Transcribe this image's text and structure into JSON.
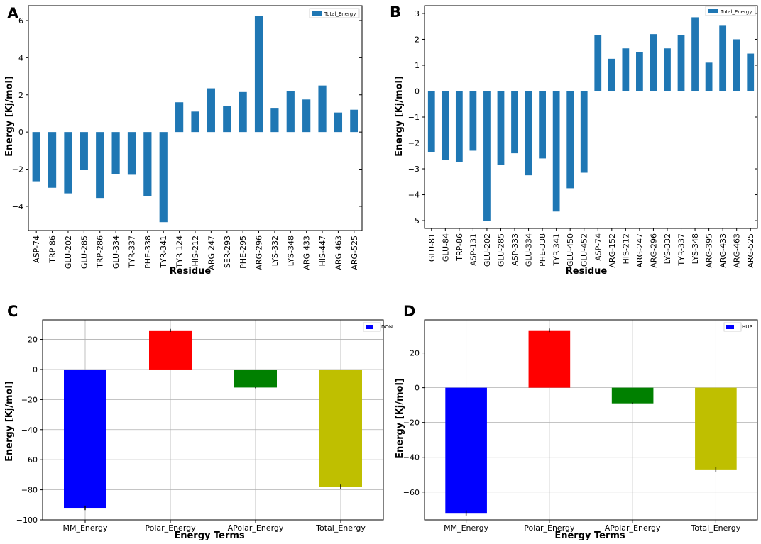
{
  "chart_data": [
    {
      "panel": "A",
      "type": "bar",
      "xlabel": "Residue",
      "ylabel": "Energy [Kj/mol]",
      "ylim": [
        -5.3,
        6.8
      ],
      "yticks": [
        -4,
        -2,
        0,
        2,
        4,
        6
      ],
      "grid": false,
      "legend": "top-right",
      "color": "#1f77b4",
      "series": [
        {
          "name": "Total_Energy",
          "values": [
            -2.65,
            -3.0,
            -3.3,
            -2.05,
            -3.55,
            -2.25,
            -2.3,
            -3.45,
            -4.85,
            1.6,
            1.1,
            2.35,
            1.4,
            2.15,
            6.25,
            1.3,
            2.2,
            1.75,
            2.5,
            1.05,
            1.2
          ]
        }
      ],
      "categories": [
        "ASP-74",
        "TRP-86",
        "GLU-202",
        "GLU-285",
        "TRP-286",
        "GLU-334",
        "TYR-337",
        "PHE-338",
        "TYR-341",
        "TYR-124",
        "HIS-212",
        "ARG-247",
        "SER-293",
        "PHE-295",
        "ARG-296",
        "LYS-332",
        "LYS-348",
        "ARG-433",
        "HIS-447",
        "ARG-463",
        "ARG-525"
      ]
    },
    {
      "panel": "B",
      "type": "bar",
      "xlabel": "Residue",
      "ylabel": "Energy [Kj/mol]",
      "ylim": [
        -5.3,
        3.3
      ],
      "yticks": [
        -5,
        -4,
        -3,
        -2,
        -1,
        0,
        1,
        2,
        3
      ],
      "grid": false,
      "legend": "top-right",
      "color": "#1f77b4",
      "series": [
        {
          "name": "Total_Energy",
          "values": [
            -2.35,
            -2.65,
            -2.75,
            -2.3,
            -5.0,
            -2.85,
            -2.4,
            -3.25,
            -2.6,
            -4.65,
            -3.75,
            -3.15,
            2.15,
            1.25,
            1.65,
            1.5,
            2.2,
            1.65,
            2.15,
            2.85,
            1.1,
            2.55,
            2.0,
            1.45
          ]
        }
      ],
      "categories": [
        "GLU-81",
        "GLU-84",
        "TRP-86",
        "ASP-131",
        "GLU-202",
        "GLU-285",
        "ASP-333",
        "GLU-334",
        "PHE-338",
        "TYR-341",
        "GLU-450",
        "GLU-452",
        "ASP-74",
        "ARG-152",
        "HIS-212",
        "ARG-247",
        "ARG-296",
        "LYS-332",
        "TYR-337",
        "LYS-348",
        "ARG-395",
        "ARG-433",
        "ARG-463",
        "ARG-525"
      ]
    },
    {
      "panel": "C",
      "type": "bar",
      "xlabel": "Energy Terms",
      "ylabel": "Energy [Kj/mol]",
      "ylim": [
        -100,
        33
      ],
      "yticks": [
        -100,
        -80,
        -60,
        -40,
        -20,
        0,
        20
      ],
      "grid": true,
      "legend": "top-right",
      "series": [
        {
          "name": "DON",
          "values": [
            -92,
            26,
            -12,
            -78
          ]
        }
      ],
      "errors": [
        1.5,
        1.0,
        0.5,
        1.5
      ],
      "colors": [
        "#0000ff",
        "#ff0000",
        "#008000",
        "#bfbf00"
      ],
      "legend_color": "#0000ff",
      "categories": [
        "MM_Energy",
        "Polar_Energy",
        "APolar_Energy",
        "Total_Energy"
      ]
    },
    {
      "panel": "D",
      "type": "bar",
      "xlabel": "Energy Terms",
      "ylabel": "Energy [Kj/mol]",
      "ylim": [
        -76,
        39
      ],
      "yticks": [
        -60,
        -40,
        -20,
        0,
        20
      ],
      "grid": true,
      "legend": "top-right",
      "series": [
        {
          "name": "HUP",
          "values": [
            -72,
            33,
            -9,
            -47
          ]
        }
      ],
      "errors": [
        1.5,
        1.0,
        0.5,
        1.5
      ],
      "colors": [
        "#0000ff",
        "#ff0000",
        "#008000",
        "#bfbf00"
      ],
      "legend_color": "#0000ff",
      "categories": [
        "MM_Energy",
        "Polar_Energy",
        "APolar_Energy",
        "Total_Energy"
      ]
    }
  ]
}
